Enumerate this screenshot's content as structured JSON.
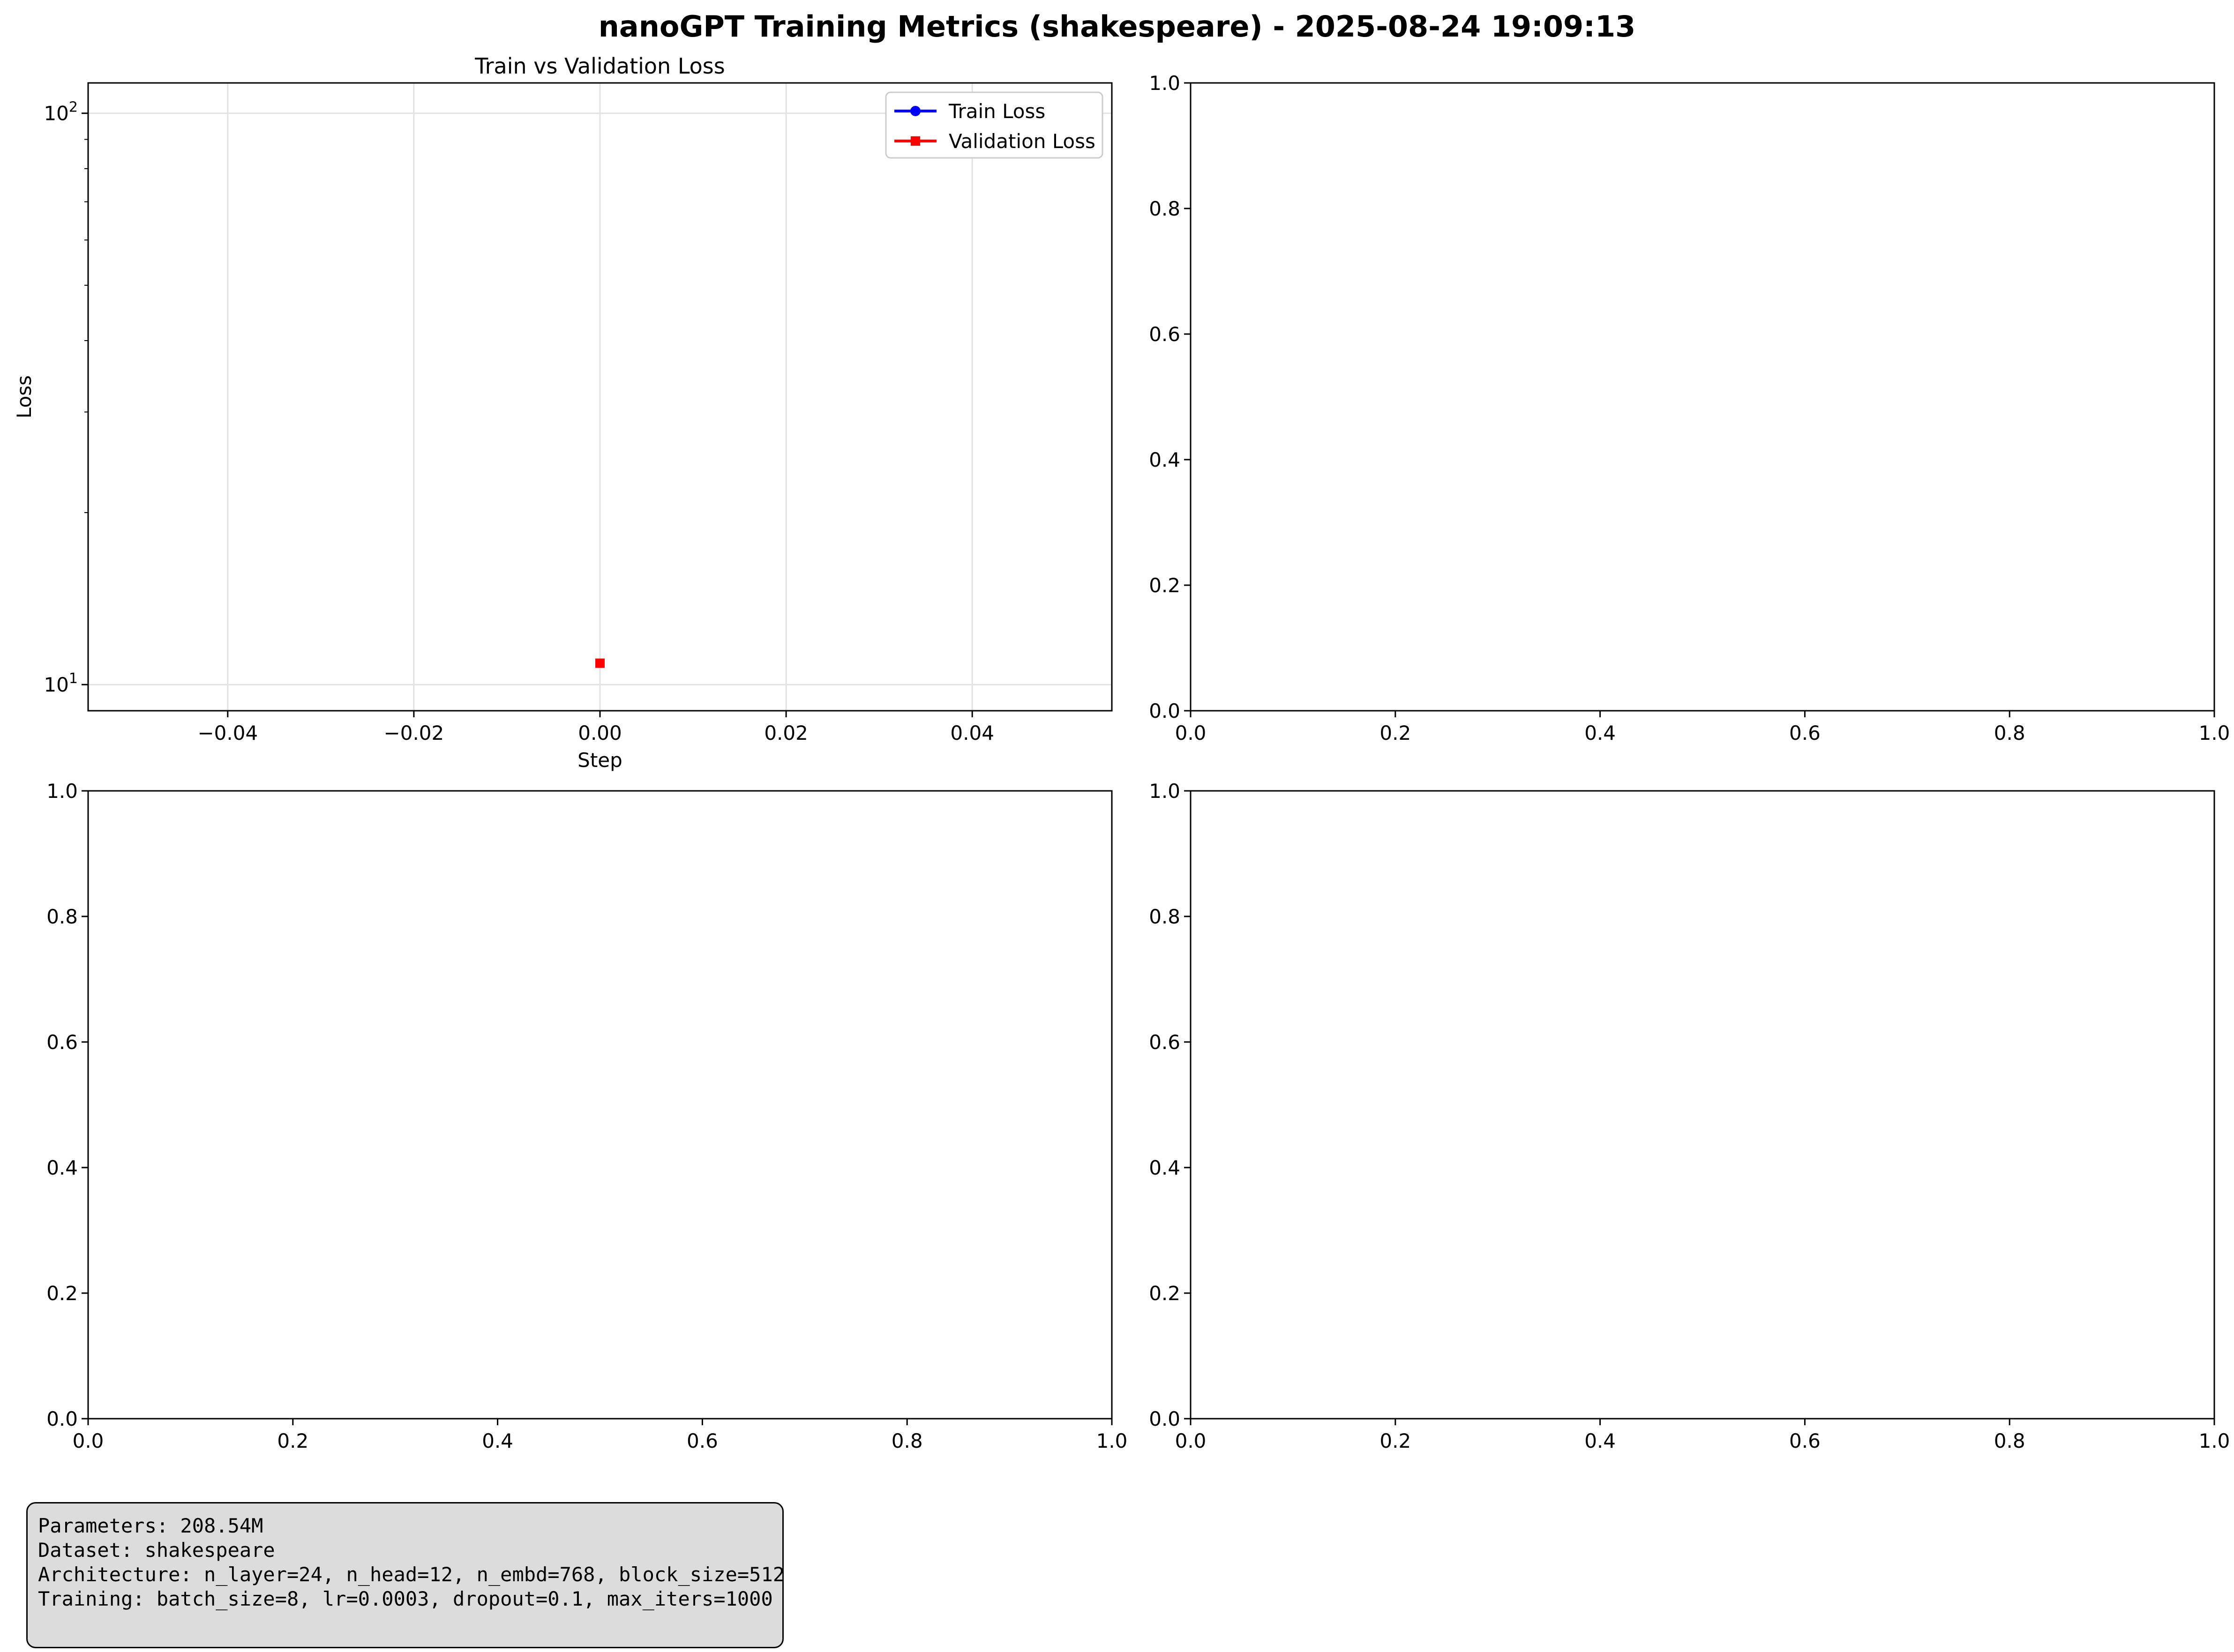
{
  "figure_title": "nanoGPT Training Metrics (shakespeare) - 2025-08-24 19:09:13",
  "info_box": {
    "line1": "Parameters: 208.54M",
    "line2": "Dataset: shakespeare",
    "line3": "Architecture: n_layer=24, n_head=12, n_embd=768, block_size=512",
    "line4": "Training: batch_size=8, lr=0.0003, dropout=0.1, max_iters=1000"
  },
  "chart_data": [
    {
      "type": "line",
      "title": "Train vs Validation Loss",
      "xlabel": "Step",
      "ylabel": "Loss",
      "xlim": [
        -0.055,
        0.055
      ],
      "ylim": [
        9,
        113
      ],
      "yscale": "log",
      "grid": true,
      "legend": "top-right",
      "x_ticks": [
        {
          "value": -0.04,
          "label": "−0.04"
        },
        {
          "value": -0.02,
          "label": "−0.02"
        },
        {
          "value": 0.0,
          "label": "0.00"
        },
        {
          "value": 0.02,
          "label": "0.02"
        },
        {
          "value": 0.04,
          "label": "0.04"
        }
      ],
      "y_ticks": [
        {
          "value": 10,
          "base": "10",
          "exp": "1"
        },
        {
          "value": 100,
          "base": "10",
          "exp": "2"
        }
      ],
      "series": [
        {
          "name": "Train Loss",
          "color": "#0000ff",
          "marker": "circle",
          "x": [],
          "y": []
        },
        {
          "name": "Validation Loss",
          "color": "#ff0000",
          "marker": "square",
          "x": [
            0
          ],
          "y": [
            10.9
          ]
        }
      ]
    },
    {
      "type": "line",
      "title": "",
      "xlabel": "",
      "ylabel": "",
      "xlim": [
        0,
        1
      ],
      "ylim": [
        0,
        1
      ],
      "x_ticks": [
        "0.0",
        "0.2",
        "0.4",
        "0.6",
        "0.8",
        "1.0"
      ],
      "y_ticks": [
        "0.0",
        "0.2",
        "0.4",
        "0.6",
        "0.8",
        "1.0"
      ],
      "series": []
    },
    {
      "type": "line",
      "title": "",
      "xlabel": "",
      "ylabel": "",
      "xlim": [
        0,
        1
      ],
      "ylim": [
        0,
        1
      ],
      "x_ticks": [
        "0.0",
        "0.2",
        "0.4",
        "0.6",
        "0.8",
        "1.0"
      ],
      "y_ticks": [
        "0.0",
        "0.2",
        "0.4",
        "0.6",
        "0.8",
        "1.0"
      ],
      "series": []
    },
    {
      "type": "line",
      "title": "",
      "xlabel": "",
      "ylabel": "",
      "xlim": [
        0,
        1
      ],
      "ylim": [
        0,
        1
      ],
      "x_ticks": [
        "0.0",
        "0.2",
        "0.4",
        "0.6",
        "0.8",
        "1.0"
      ],
      "y_ticks": [
        "0.0",
        "0.2",
        "0.4",
        "0.6",
        "0.8",
        "1.0"
      ],
      "series": []
    }
  ]
}
